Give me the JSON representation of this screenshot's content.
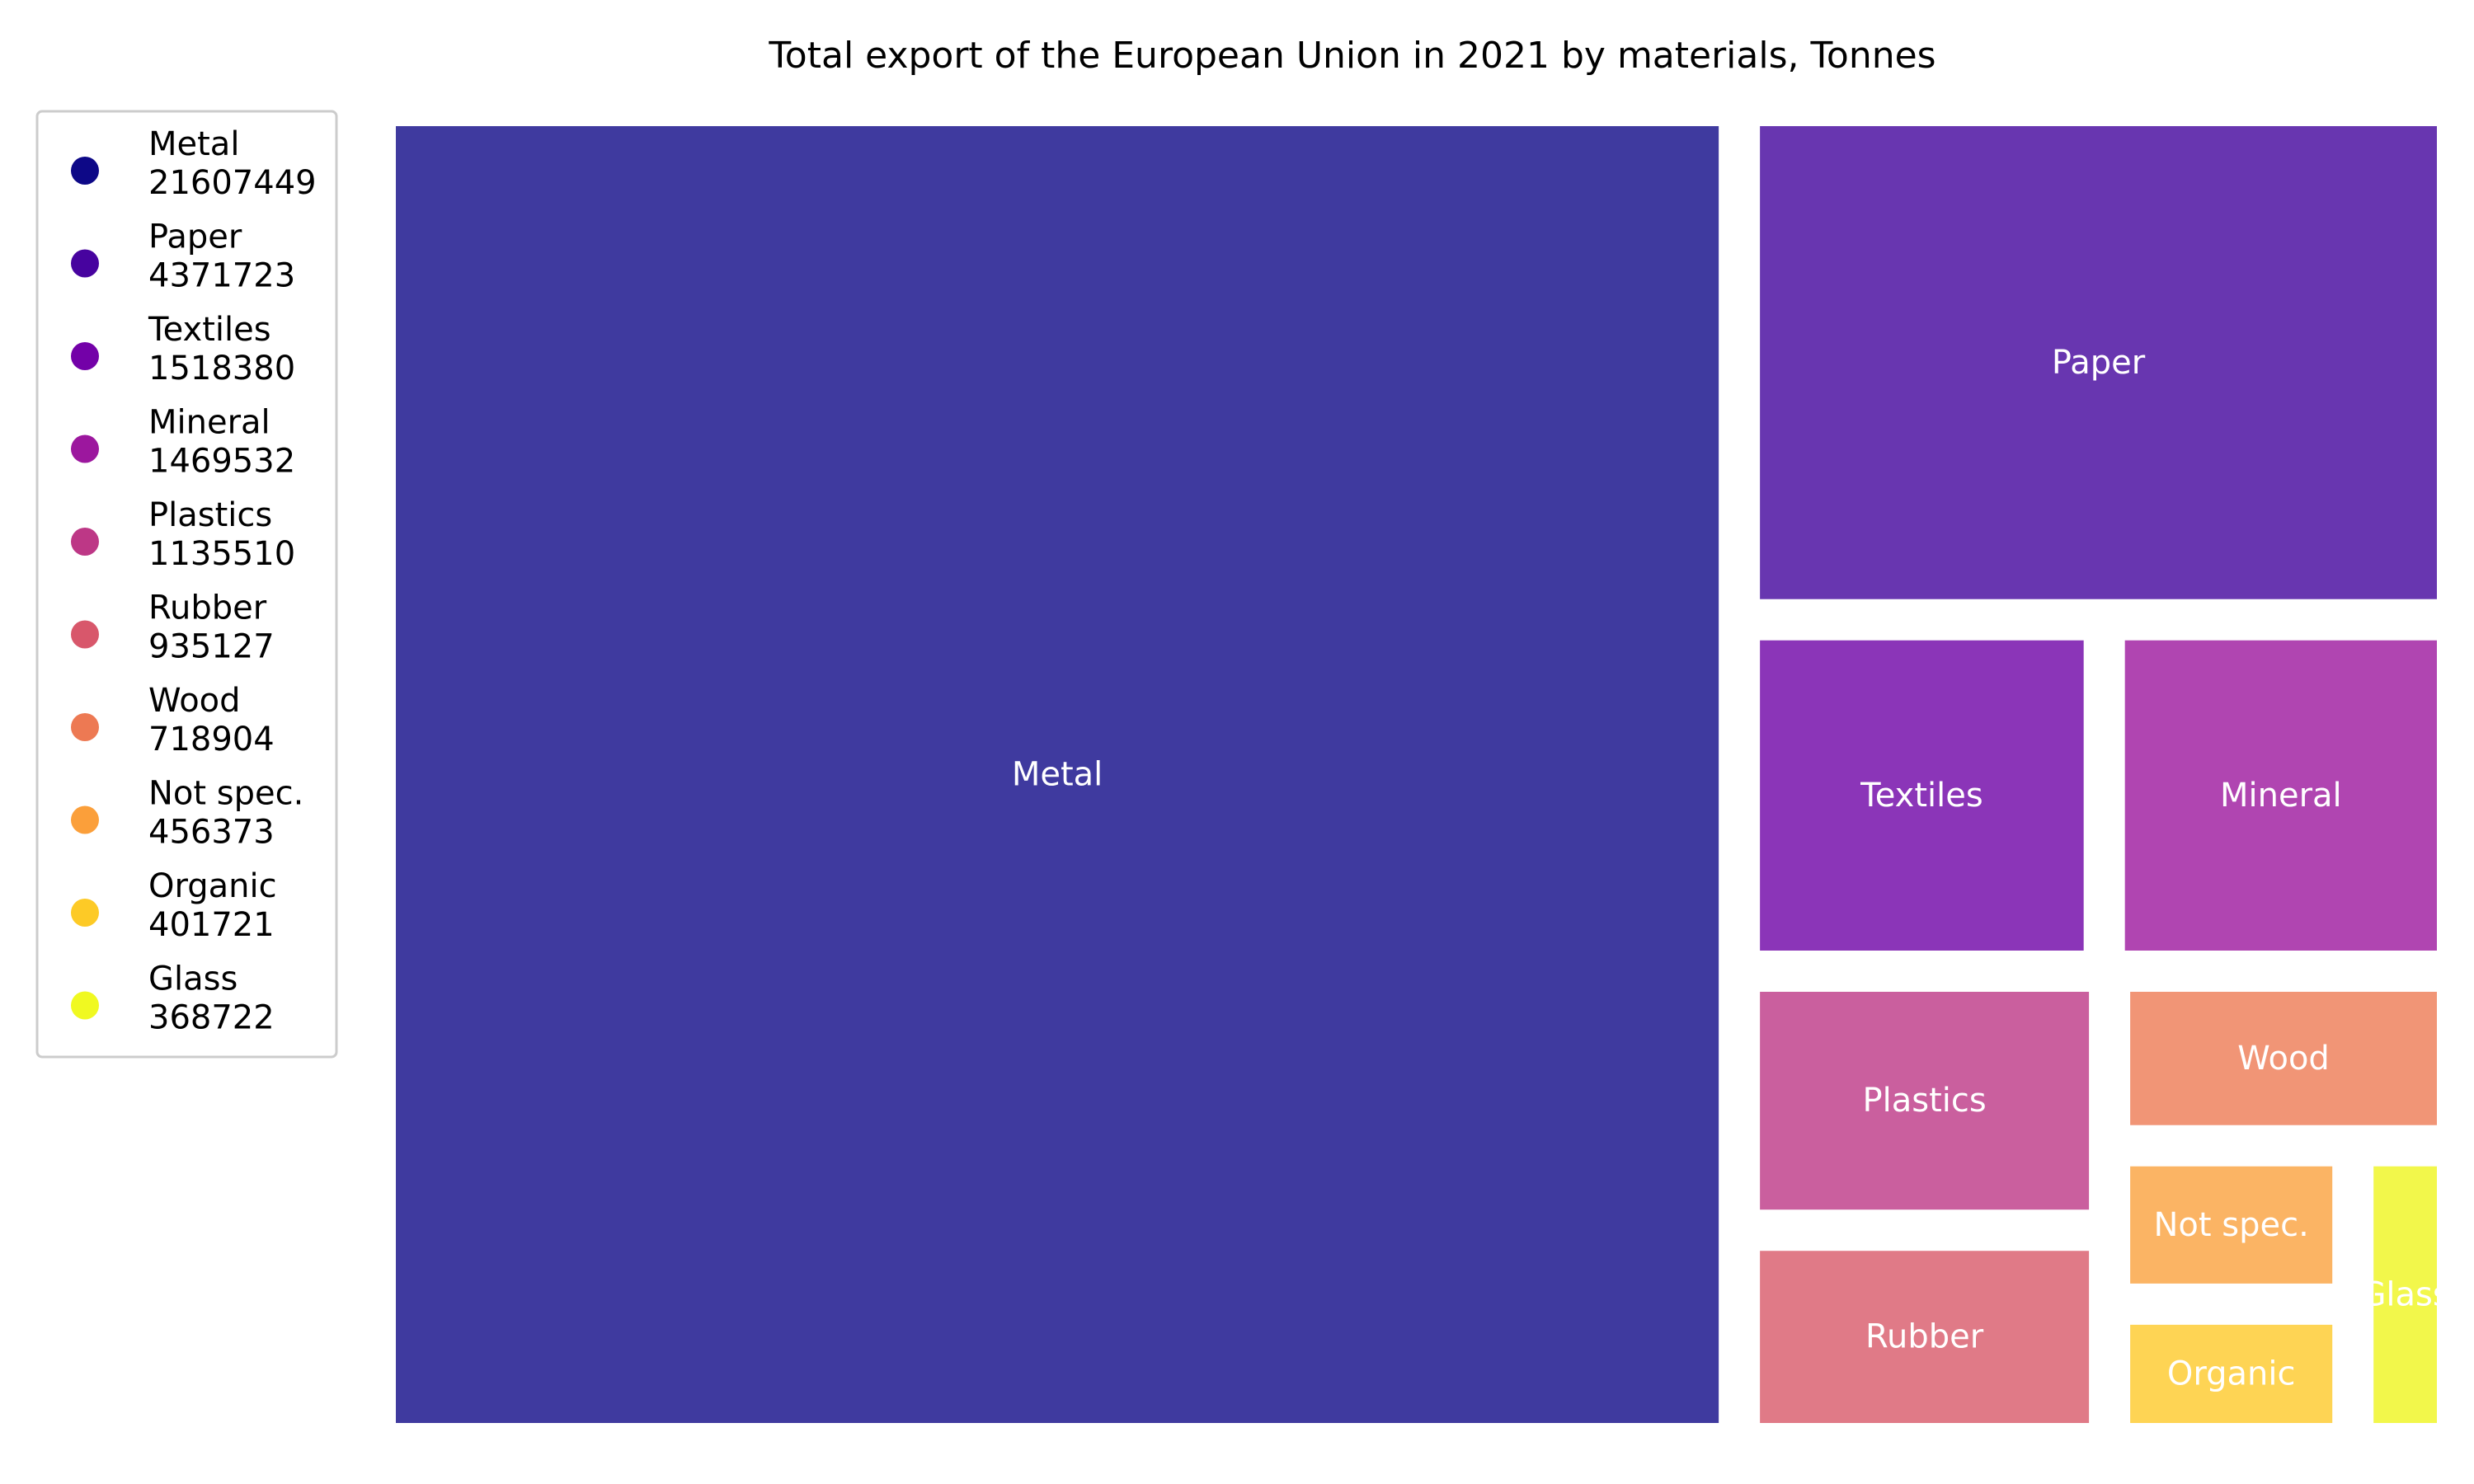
{
  "chart_data": {
    "type": "treemap",
    "title": "Total export of the European Union in 2021 by materials, Tonnes",
    "items": [
      {
        "name": "Metal",
        "value": 21607449,
        "color": "#0d0887",
        "tile_color": "#3f3a9f"
      },
      {
        "name": "Paper",
        "value": 4371723,
        "color": "#47039f",
        "tile_color": "#6836b0"
      },
      {
        "name": "Textiles",
        "value": 1518380,
        "color": "#7301a8",
        "tile_color": "#8b35b8"
      },
      {
        "name": "Mineral",
        "value": 1469532,
        "color": "#9c179e",
        "tile_color": "#b045b1"
      },
      {
        "name": "Plastics",
        "value": 1135510,
        "color": "#bd3786",
        "tile_color": "#ca5f9e"
      },
      {
        "name": "Rubber",
        "value": 935127,
        "color": "#d8576b",
        "tile_color": "#e07a87"
      },
      {
        "name": "Wood",
        "value": 718904,
        "color": "#ed7953",
        "tile_color": "#f19576"
      },
      {
        "name": "Not spec.",
        "value": 456373,
        "color": "#fb9f3a",
        "tile_color": "#fbb464"
      },
      {
        "name": "Organic",
        "value": 401721,
        "color": "#fdca26",
        "tile_color": "#fed454"
      },
      {
        "name": "Glass",
        "value": 368722,
        "color": "#f0f921",
        "tile_color": "#f2f74b"
      }
    ],
    "legend": "left"
  }
}
